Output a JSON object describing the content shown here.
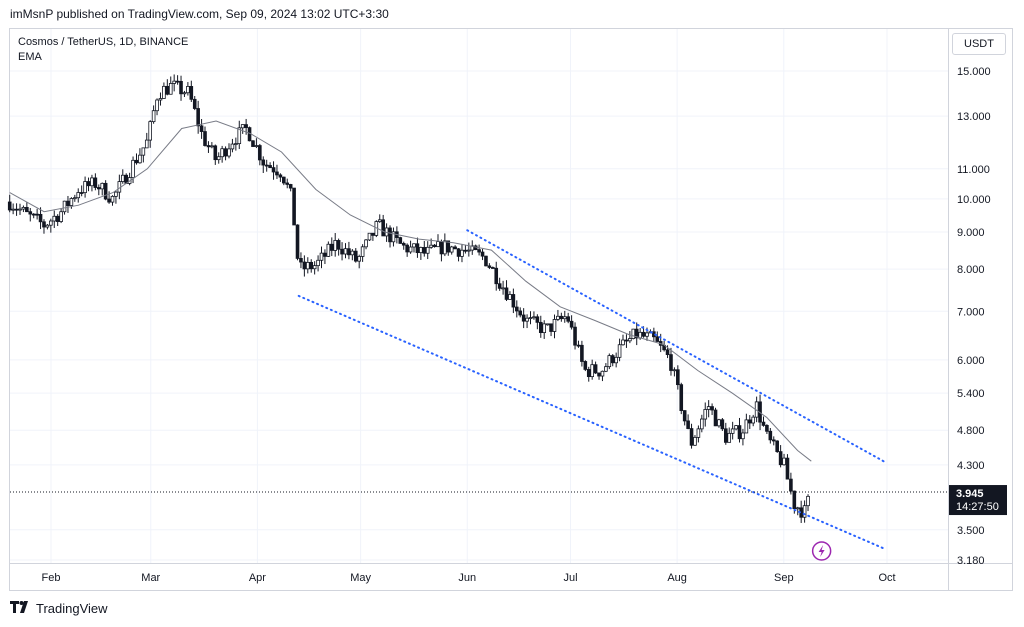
{
  "header": {
    "published": "imMsnP published on TradingView.com, Sep 09, 2024 13:02 UTC+3:30"
  },
  "legend": {
    "symbol": "Cosmos / TetherUS, 1D, BINANCE",
    "indicator": "EMA"
  },
  "currency_button": "USDT",
  "footer": {
    "brand": "TradingView",
    "logo": "tradingview-logo-icon"
  },
  "price_tag": {
    "price": "3.945",
    "countdown": "14:27:50"
  },
  "colors": {
    "up": "#ffffff",
    "down": "#131722",
    "ema": "#787b86",
    "trendline": "#2962ff",
    "grid": "#f0f3fa",
    "flash": "#9c27b0"
  },
  "chart_data": {
    "type": "candlestick",
    "symbol": "Cosmos / TetherUS",
    "interval": "1D",
    "exchange": "BINANCE",
    "y_scale": "log",
    "y_ticks": [
      "15.000",
      "13.000",
      "11.000",
      "10.000",
      "9.000",
      "8.000",
      "7.000",
      "6.000",
      "5.400",
      "4.800",
      "4.300",
      "3.500",
      "3.180"
    ],
    "x_ticks": [
      "Feb",
      "Mar",
      "Apr",
      "May",
      "Jun",
      "Jul",
      "Aug",
      "Sep",
      "Oct"
    ],
    "last_price": 3.945,
    "series": [
      {
        "name": "Close (approx.)",
        "points": [
          [
            "2024-01-20",
            9.9
          ],
          [
            "2024-01-25",
            9.5
          ],
          [
            "2024-01-30",
            9.2
          ],
          [
            "2024-02-04",
            9.6
          ],
          [
            "2024-02-09",
            10.3
          ],
          [
            "2024-02-14",
            10.5
          ],
          [
            "2024-02-19",
            10.0
          ],
          [
            "2024-02-24",
            11.0
          ],
          [
            "2024-02-29",
            12.0
          ],
          [
            "2024-03-03",
            14.0
          ],
          [
            "2024-03-07",
            14.3
          ],
          [
            "2024-03-12",
            14.0
          ],
          [
            "2024-03-16",
            12.2
          ],
          [
            "2024-03-20",
            11.3
          ],
          [
            "2024-03-25",
            12.1
          ],
          [
            "2024-03-29",
            12.5
          ],
          [
            "2024-04-03",
            11.2
          ],
          [
            "2024-04-08",
            10.9
          ],
          [
            "2024-04-11",
            10.0
          ],
          [
            "2024-04-13",
            8.0
          ],
          [
            "2024-04-18",
            8.1
          ],
          [
            "2024-04-24",
            8.7
          ],
          [
            "2024-04-30",
            8.2
          ],
          [
            "2024-05-06",
            9.2
          ],
          [
            "2024-05-13",
            8.6
          ],
          [
            "2024-05-20",
            8.4
          ],
          [
            "2024-05-25",
            8.6
          ],
          [
            "2024-05-31",
            8.5
          ],
          [
            "2024-06-06",
            8.3
          ],
          [
            "2024-06-12",
            7.5
          ],
          [
            "2024-06-18",
            6.8
          ],
          [
            "2024-06-24",
            6.6
          ],
          [
            "2024-06-30",
            6.9
          ],
          [
            "2024-07-05",
            5.8
          ],
          [
            "2024-07-10",
            5.8
          ],
          [
            "2024-07-15",
            6.2
          ],
          [
            "2024-07-20",
            6.5
          ],
          [
            "2024-07-25",
            6.4
          ],
          [
            "2024-07-30",
            6.0
          ],
          [
            "2024-08-03",
            5.0
          ],
          [
            "2024-08-05",
            4.6
          ],
          [
            "2024-08-10",
            5.2
          ],
          [
            "2024-08-15",
            4.7
          ],
          [
            "2024-08-20",
            4.8
          ],
          [
            "2024-08-24",
            5.2
          ],
          [
            "2024-08-27",
            4.7
          ],
          [
            "2024-09-01",
            4.3
          ],
          [
            "2024-09-04",
            3.8
          ],
          [
            "2024-09-07",
            3.7
          ],
          [
            "2024-09-09",
            3.945
          ]
        ]
      },
      {
        "name": "EMA",
        "points": [
          [
            "2024-01-20",
            10.2
          ],
          [
            "2024-01-30",
            9.6
          ],
          [
            "2024-02-09",
            9.8
          ],
          [
            "2024-02-19",
            10.2
          ],
          [
            "2024-02-29",
            11.0
          ],
          [
            "2024-03-10",
            12.5
          ],
          [
            "2024-03-20",
            12.8
          ],
          [
            "2024-03-30",
            12.3
          ],
          [
            "2024-04-08",
            11.6
          ],
          [
            "2024-04-18",
            10.3
          ],
          [
            "2024-04-28",
            9.5
          ],
          [
            "2024-05-08",
            9.0
          ],
          [
            "2024-05-18",
            8.8
          ],
          [
            "2024-05-28",
            8.7
          ],
          [
            "2024-06-08",
            8.5
          ],
          [
            "2024-06-18",
            7.7
          ],
          [
            "2024-06-28",
            7.1
          ],
          [
            "2024-07-08",
            6.8
          ],
          [
            "2024-07-18",
            6.5
          ],
          [
            "2024-07-28",
            6.3
          ],
          [
            "2024-08-07",
            5.8
          ],
          [
            "2024-08-17",
            5.4
          ],
          [
            "2024-08-27",
            5.0
          ],
          [
            "2024-09-05",
            4.5
          ],
          [
            "2024-09-09",
            4.35
          ]
        ]
      }
    ],
    "trendlines": [
      {
        "name": "upper channel",
        "style": "dotted",
        "from": [
          "2024-06-01",
          9.05
        ],
        "to": [
          "2024-09-30",
          4.35
        ]
      },
      {
        "name": "lower channel",
        "style": "dotted",
        "from": [
          "2024-04-13",
          7.35
        ],
        "to": [
          "2024-09-30",
          3.3
        ]
      }
    ]
  }
}
